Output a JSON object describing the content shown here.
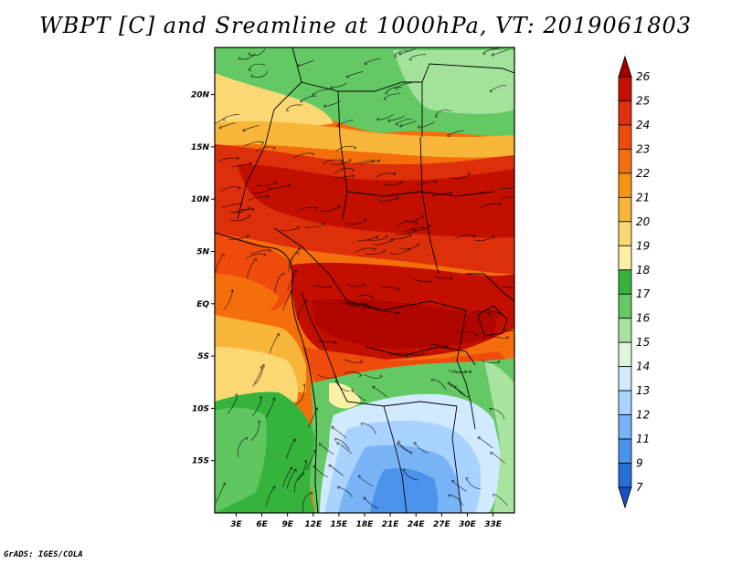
{
  "title": "WBPT [C] and Sreamline at 1000hPa, VT: 2019061803",
  "footer": "GrADS: IGES/COLA",
  "map": {
    "variable": "WBPT [C]",
    "level": "1000hPa",
    "valid_time": "2019061803",
    "region_labels": [],
    "lat_labels": [
      "20N",
      "15N",
      "10N",
      "5N",
      "EQ",
      "5S",
      "10S",
      "15S"
    ],
    "lon_labels": [
      "3E",
      "6E",
      "9E",
      "12E",
      "15E",
      "18E",
      "21E",
      "24E",
      "27E",
      "30E",
      "33E"
    ],
    "lat_values": [
      20,
      15,
      10,
      5,
      0,
      -5,
      -10,
      -15
    ],
    "lon_values": [
      3,
      6,
      9,
      12,
      15,
      18,
      21,
      24,
      27,
      30,
      33
    ],
    "lon_range": [
      0.5,
      35.5
    ],
    "lat_range": [
      -20,
      24.5
    ]
  },
  "colorbar": {
    "labels": [
      "26",
      "25",
      "24",
      "23",
      "22",
      "21",
      "20",
      "19",
      "18",
      "17",
      "16",
      "15",
      "14",
      "13",
      "12",
      "11",
      "9",
      "7"
    ],
    "colors": [
      "#a50000",
      "#c30f00",
      "#dc2f0a",
      "#ee4b0c",
      "#f56e0c",
      "#f59514",
      "#f7b53a",
      "#fbd873",
      "#fcefa6",
      "#36b33c",
      "#64c864",
      "#a8e4a0",
      "#def5de",
      "#d1eaff",
      "#a8d2ff",
      "#78b4f5",
      "#4a92eb",
      "#2670d8",
      "#1a4fc4"
    ]
  }
}
